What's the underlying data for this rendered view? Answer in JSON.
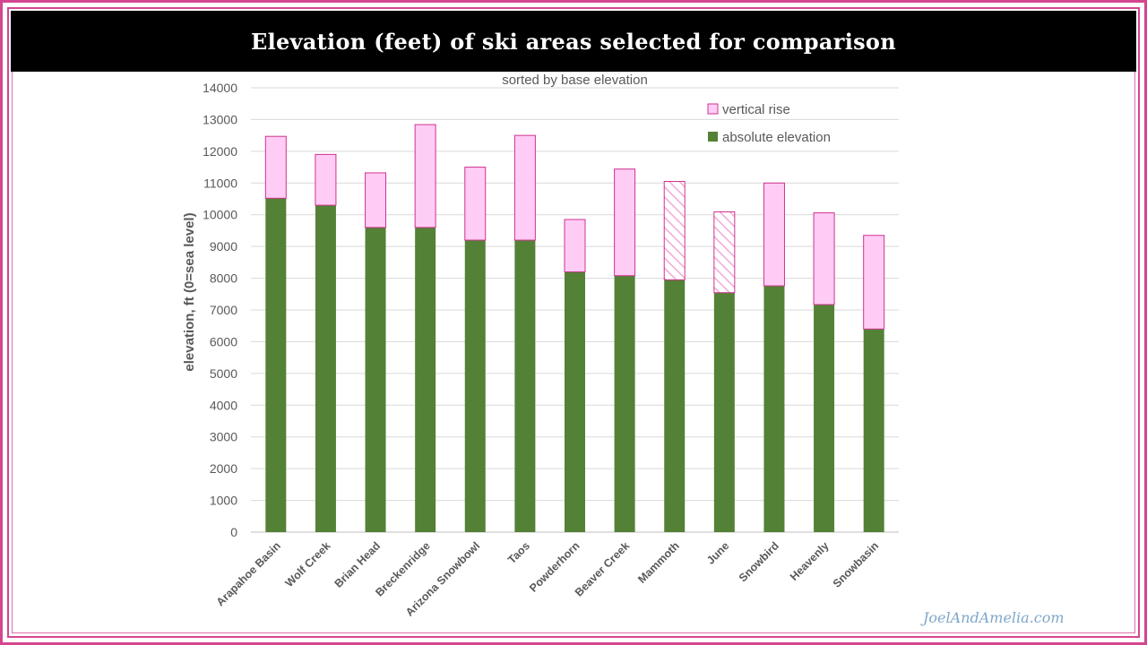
{
  "header": {
    "title": "Elevation (feet) of ski areas selected for comparison"
  },
  "watermark": "JoelAndAmelia.com",
  "colors": {
    "frame": "#d4478f",
    "base": "#538135",
    "rise_fill": "#ffccf5",
    "rise_stroke": "#d0338e",
    "grid": "#d9d9d9",
    "axis_text": "#595959"
  },
  "chart_data": {
    "type": "bar",
    "stacked": true,
    "title": "sorted by base elevation",
    "xlabel": "",
    "ylabel": "elevation, ft (0=sea level)",
    "ylim": [
      0,
      14000
    ],
    "yticks": [
      0,
      1000,
      2000,
      3000,
      4000,
      5000,
      6000,
      7000,
      8000,
      9000,
      10000,
      11000,
      12000,
      13000,
      14000
    ],
    "grid": true,
    "legend_position": "top-right",
    "categories": [
      "Arapahoe Basin",
      "Wolf Creek",
      "Brian Head",
      "Breckenridge",
      "Arizona Snowbowl",
      "Taos",
      "Powderhorn",
      "Beaver Creek",
      "Mammoth",
      "June",
      "Snowbird",
      "Heavenly",
      "Snowbasin"
    ],
    "series": [
      {
        "name": "absolute elevation",
        "values": [
          10520,
          10300,
          9600,
          9600,
          9200,
          9200,
          8200,
          8080,
          7950,
          7545,
          7760,
          7170,
          6400
        ]
      },
      {
        "name": "vertical rise",
        "values": [
          1950,
          1600,
          1720,
          3240,
          2300,
          3300,
          1650,
          3360,
          3100,
          2545,
          3240,
          2890,
          2950
        ],
        "hatched_categories": [
          "Mammoth",
          "June"
        ]
      }
    ]
  }
}
